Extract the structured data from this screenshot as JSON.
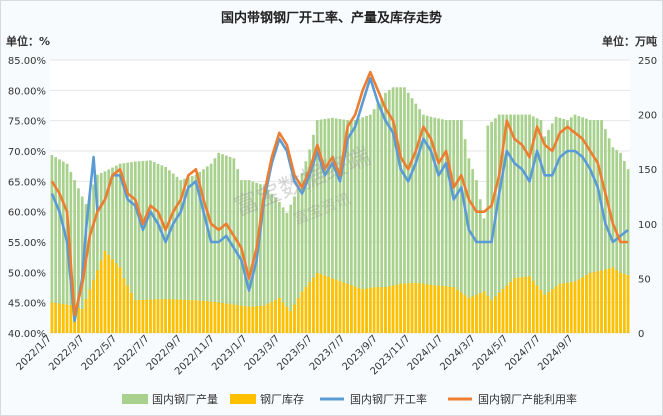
{
  "title": "国内带钢钢厂开工率、产量及库存走势",
  "left_unit": "单位：%",
  "right_unit": "单位：万吨",
  "watermark_main": "富宝数据终端",
  "watermark_sub": "富宝资讯",
  "colors": {
    "production": "#a9d18e",
    "inventory": "#ffc000",
    "operating": "#5b9bd5",
    "utilization": "#ed7d31"
  },
  "chart_data": {
    "type": "combo",
    "x_tick_labels": [
      "2022/1/7",
      "2022/3/7",
      "2022/5/7",
      "2022/7/7",
      "2022/9/7",
      "2022/11/7",
      "2023/1/7",
      "2023/3/7",
      "2023/5/7",
      "2023/7/7",
      "2023/9/7",
      "2023/11/7",
      "2024/1/7",
      "2024/3/7",
      "2024/5/7",
      "2024/7/7",
      "2024/9/7"
    ],
    "y_left_ticks": [
      "40.00%",
      "45.00%",
      "50.00%",
      "55.00%",
      "60.00%",
      "65.00%",
      "70.00%",
      "75.00%",
      "80.00%",
      "85.00%"
    ],
    "y_right_ticks": [
      "0",
      "50",
      "100",
      "150",
      "200",
      "250"
    ],
    "ylim_left": [
      40,
      85
    ],
    "ylim_right": [
      0,
      250
    ],
    "legend_position": "bottom",
    "series": [
      {
        "name": "国内钢厂产量",
        "type": "bar",
        "axis": "right",
        "anchors": [
          [
            0,
            163
          ],
          [
            4,
            155
          ],
          [
            8,
            125
          ],
          [
            9,
            118
          ],
          [
            12,
            145
          ],
          [
            14,
            148
          ],
          [
            18,
            155
          ],
          [
            22,
            157
          ],
          [
            26,
            158
          ],
          [
            30,
            152
          ],
          [
            34,
            140
          ],
          [
            38,
            145
          ],
          [
            42,
            155
          ],
          [
            44,
            165
          ],
          [
            48,
            160
          ],
          [
            50,
            140
          ],
          [
            52,
            140
          ],
          [
            56,
            135
          ],
          [
            60,
            120
          ],
          [
            62,
            110
          ],
          [
            64,
            125
          ],
          [
            68,
            168
          ],
          [
            70,
            195
          ],
          [
            74,
            197
          ],
          [
            78,
            195
          ],
          [
            80,
            195
          ],
          [
            84,
            200
          ],
          [
            88,
            220
          ],
          [
            90,
            225
          ],
          [
            93,
            225
          ],
          [
            95,
            215
          ],
          [
            98,
            200
          ],
          [
            100,
            198
          ],
          [
            104,
            195
          ],
          [
            108,
            195
          ],
          [
            110,
            160
          ],
          [
            112,
            140
          ],
          [
            114,
            105
          ],
          [
            115,
            190
          ],
          [
            118,
            200
          ],
          [
            122,
            200
          ],
          [
            126,
            200
          ],
          [
            129,
            195
          ],
          [
            130,
            180
          ],
          [
            133,
            198
          ],
          [
            136,
            195
          ],
          [
            138,
            200
          ],
          [
            142,
            195
          ],
          [
            145,
            195
          ],
          [
            148,
            170
          ],
          [
            150,
            165
          ],
          [
            152,
            150
          ]
        ]
      },
      {
        "name": "钢厂库存",
        "type": "bar",
        "axis": "right",
        "anchors": [
          [
            0,
            28
          ],
          [
            6,
            25
          ],
          [
            8,
            22
          ],
          [
            10,
            40
          ],
          [
            14,
            75
          ],
          [
            18,
            60
          ],
          [
            19,
            50
          ],
          [
            22,
            30
          ],
          [
            30,
            31
          ],
          [
            38,
            30
          ],
          [
            44,
            28
          ],
          [
            52,
            24
          ],
          [
            56,
            25
          ],
          [
            60,
            32
          ],
          [
            63,
            20
          ],
          [
            66,
            38
          ],
          [
            70,
            55
          ],
          [
            74,
            50
          ],
          [
            78,
            45
          ],
          [
            82,
            40
          ],
          [
            85,
            42
          ],
          [
            88,
            42
          ],
          [
            92,
            45
          ],
          [
            96,
            46
          ],
          [
            100,
            44
          ],
          [
            106,
            42
          ],
          [
            110,
            32
          ],
          [
            114,
            38
          ],
          [
            116,
            30
          ],
          [
            118,
            37
          ],
          [
            122,
            50
          ],
          [
            126,
            52
          ],
          [
            130,
            35
          ],
          [
            134,
            45
          ],
          [
            138,
            47
          ],
          [
            142,
            55
          ],
          [
            146,
            58
          ],
          [
            148,
            60
          ],
          [
            150,
            55
          ],
          [
            152,
            53
          ]
        ]
      },
      {
        "name": "国内钢厂开工率",
        "type": "line",
        "axis": "left",
        "anchors": [
          [
            0,
            63
          ],
          [
            2,
            60
          ],
          [
            4,
            55
          ],
          [
            6,
            42
          ],
          [
            8,
            49
          ],
          [
            9,
            57
          ],
          [
            11,
            69
          ],
          [
            12,
            60
          ],
          [
            14,
            62
          ],
          [
            16,
            66
          ],
          [
            18,
            66
          ],
          [
            20,
            62
          ],
          [
            22,
            61
          ],
          [
            24,
            57
          ],
          [
            26,
            60
          ],
          [
            28,
            58
          ],
          [
            30,
            55
          ],
          [
            32,
            58
          ],
          [
            34,
            60
          ],
          [
            36,
            64
          ],
          [
            38,
            65
          ],
          [
            40,
            60
          ],
          [
            42,
            55
          ],
          [
            44,
            55
          ],
          [
            46,
            56
          ],
          [
            48,
            54
          ],
          [
            50,
            52
          ],
          [
            52,
            47
          ],
          [
            54,
            52
          ],
          [
            56,
            62
          ],
          [
            58,
            68
          ],
          [
            60,
            72
          ],
          [
            62,
            70
          ],
          [
            64,
            65
          ],
          [
            66,
            63
          ],
          [
            68,
            66
          ],
          [
            70,
            70
          ],
          [
            72,
            66
          ],
          [
            74,
            68
          ],
          [
            76,
            65
          ],
          [
            78,
            72
          ],
          [
            80,
            74
          ],
          [
            82,
            78
          ],
          [
            84,
            82
          ],
          [
            86,
            78
          ],
          [
            88,
            75
          ],
          [
            90,
            73
          ],
          [
            92,
            67
          ],
          [
            94,
            65
          ],
          [
            96,
            68
          ],
          [
            98,
            72
          ],
          [
            100,
            70
          ],
          [
            102,
            66
          ],
          [
            104,
            68
          ],
          [
            106,
            62
          ],
          [
            108,
            64
          ],
          [
            110,
            57
          ],
          [
            112,
            55
          ],
          [
            114,
            55
          ],
          [
            116,
            55
          ],
          [
            118,
            63
          ],
          [
            120,
            70
          ],
          [
            122,
            68
          ],
          [
            124,
            67
          ],
          [
            126,
            65
          ],
          [
            128,
            70
          ],
          [
            130,
            66
          ],
          [
            132,
            66
          ],
          [
            134,
            69
          ],
          [
            136,
            70
          ],
          [
            138,
            70
          ],
          [
            140,
            69
          ],
          [
            142,
            67
          ],
          [
            144,
            64
          ],
          [
            146,
            58
          ],
          [
            148,
            55
          ],
          [
            150,
            56
          ],
          [
            152,
            57
          ]
        ]
      },
      {
        "name": "国内钢厂产能利用率",
        "type": "line",
        "axis": "left",
        "anchors": [
          [
            0,
            65
          ],
          [
            2,
            63
          ],
          [
            4,
            60
          ],
          [
            6,
            43
          ],
          [
            8,
            48
          ],
          [
            10,
            56
          ],
          [
            12,
            60
          ],
          [
            14,
            62
          ],
          [
            16,
            66
          ],
          [
            18,
            67
          ],
          [
            20,
            63
          ],
          [
            22,
            62
          ],
          [
            24,
            58
          ],
          [
            26,
            61
          ],
          [
            28,
            60
          ],
          [
            30,
            57
          ],
          [
            32,
            60
          ],
          [
            34,
            62
          ],
          [
            36,
            66
          ],
          [
            38,
            67
          ],
          [
            40,
            62
          ],
          [
            42,
            58
          ],
          [
            44,
            57
          ],
          [
            46,
            58
          ],
          [
            48,
            56
          ],
          [
            50,
            54
          ],
          [
            52,
            49
          ],
          [
            54,
            54
          ],
          [
            56,
            63
          ],
          [
            58,
            69
          ],
          [
            60,
            73
          ],
          [
            62,
            71
          ],
          [
            64,
            66
          ],
          [
            66,
            64
          ],
          [
            68,
            67
          ],
          [
            70,
            71
          ],
          [
            72,
            67
          ],
          [
            74,
            69
          ],
          [
            76,
            66
          ],
          [
            78,
            74
          ],
          [
            80,
            76
          ],
          [
            82,
            80
          ],
          [
            84,
            83
          ],
          [
            86,
            80
          ],
          [
            88,
            77
          ],
          [
            90,
            75
          ],
          [
            92,
            69
          ],
          [
            94,
            67
          ],
          [
            96,
            70
          ],
          [
            98,
            74
          ],
          [
            100,
            72
          ],
          [
            102,
            68
          ],
          [
            104,
            70
          ],
          [
            106,
            64
          ],
          [
            108,
            66
          ],
          [
            110,
            62
          ],
          [
            112,
            60
          ],
          [
            114,
            60
          ],
          [
            116,
            61
          ],
          [
            118,
            66
          ],
          [
            120,
            75
          ],
          [
            122,
            72
          ],
          [
            124,
            71
          ],
          [
            126,
            69
          ],
          [
            128,
            74
          ],
          [
            130,
            71
          ],
          [
            132,
            70
          ],
          [
            134,
            73
          ],
          [
            136,
            74
          ],
          [
            138,
            73
          ],
          [
            140,
            72
          ],
          [
            142,
            70
          ],
          [
            144,
            68
          ],
          [
            146,
            63
          ],
          [
            148,
            58
          ],
          [
            150,
            55
          ],
          [
            152,
            55
          ]
        ]
      }
    ]
  }
}
